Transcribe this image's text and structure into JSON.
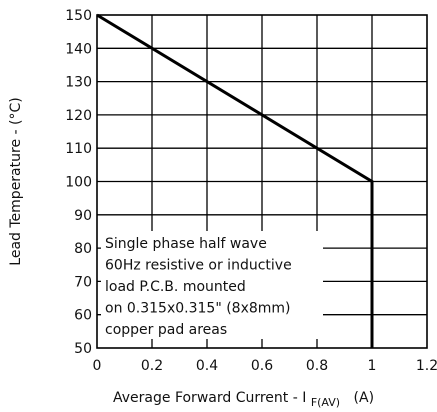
{
  "chart_data": {
    "type": "line",
    "title": "",
    "xlabel": "Average Forward Current - I",
    "xlabel_sub": "F(AV)",
    "xlabel_unit": "(A)",
    "ylabel": "Lead Temperature - (°C)",
    "xlim": [
      0,
      1.2
    ],
    "ylim": [
      50,
      150
    ],
    "xticks": [
      "0",
      "0.2",
      "0.4",
      "0.6",
      "0.8",
      "1",
      "1.2"
    ],
    "xtick_values": [
      0,
      0.2,
      0.4,
      0.6,
      0.8,
      1.0,
      1.2
    ],
    "yticks": [
      "50",
      "60",
      "70",
      "80",
      "90",
      "100",
      "110",
      "120",
      "130",
      "140",
      "150"
    ],
    "ytick_values": [
      50,
      60,
      70,
      80,
      90,
      100,
      110,
      120,
      130,
      140,
      150
    ],
    "grid": true,
    "series": [
      {
        "x": [
          0,
          1.0,
          1.0
        ],
        "y": [
          150,
          100,
          50
        ]
      }
    ],
    "annotation": {
      "lines": [
        "Single phase half wave",
        "60Hz resistive or inductive",
        "load P.C.B. mounted",
        "on 0.315x0.315\" (8x8mm)",
        "copper pad areas"
      ]
    },
    "colors": {
      "line": "#000000",
      "grid": "#000000",
      "background": "#ffffff"
    }
  }
}
